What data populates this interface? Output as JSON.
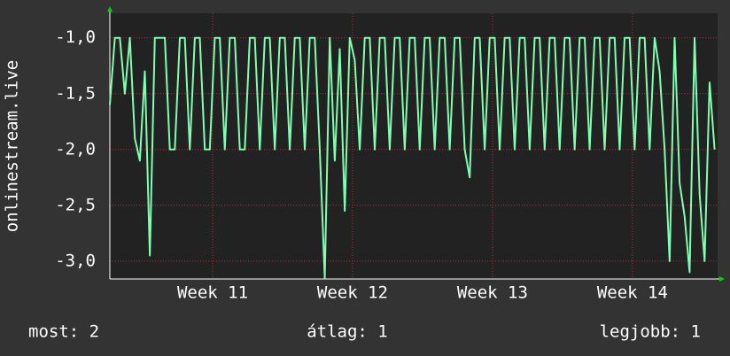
{
  "chart_data": {
    "type": "line",
    "ylabel": "onlinestream.live",
    "x": [
      0,
      0.25,
      0.5,
      0.75,
      1,
      1.25,
      1.5,
      1.75,
      2,
      2.25,
      2.5,
      2.75,
      3,
      3.25,
      3.5,
      3.75,
      4,
      4.25,
      4.5,
      4.75,
      5,
      5.25,
      5.5,
      5.75,
      6,
      6.25,
      6.5,
      6.75,
      7,
      7.25,
      7.5,
      7.75,
      8,
      8.25,
      8.5,
      8.75,
      9,
      9.25,
      9.5,
      9.75,
      10,
      10.25,
      10.5,
      10.75,
      11,
      11.25,
      11.5,
      11.75,
      12,
      12.25,
      12.5,
      12.75,
      13,
      13.25,
      13.5,
      13.75,
      14,
      14.25,
      14.5,
      14.75,
      15,
      15.25,
      15.5,
      15.75,
      16,
      16.25,
      16.5,
      16.75,
      17,
      17.25,
      17.5,
      17.75,
      18,
      18.25,
      18.5,
      18.75,
      19,
      19.25,
      19.5,
      19.75,
      20,
      20.25,
      20.5,
      20.75,
      21,
      21.25,
      21.5,
      21.75,
      22,
      22.25,
      22.5,
      22.75,
      23,
      23.25,
      23.5,
      23.75,
      24,
      24.25,
      24.5,
      24.75,
      25,
      25.25,
      25.5,
      25.75,
      26,
      26.25,
      26.5,
      26.75,
      27,
      27.25,
      27.5,
      27.75,
      28,
      28.25,
      28.5,
      28.75,
      29,
      29.25,
      29.5,
      29.75,
      30,
      30.25
    ],
    "series": [
      {
        "name": "onlinestream.live",
        "color": "#80ffb0",
        "values": [
          -1.6,
          -1,
          -1,
          -1.5,
          -1,
          -1.9,
          -2.1,
          -1.3,
          -2.95,
          -1,
          -1,
          -1,
          -2,
          -2,
          -1,
          -1,
          -2,
          -1,
          -1,
          -2,
          -2,
          -1,
          -1,
          -2,
          -1,
          -1,
          -2,
          -2,
          -1,
          -1,
          -2,
          -1,
          -1,
          -2,
          -1,
          -1,
          -2,
          -1,
          -1,
          -2,
          -1,
          -1,
          -2,
          -3.15,
          -1,
          -2.1,
          -1.1,
          -2.55,
          -1,
          -1.2,
          -2,
          -1,
          -1,
          -2,
          -1,
          -1,
          -2,
          -1,
          -1,
          -2,
          -1,
          -1,
          -2,
          -1,
          -1,
          -2,
          -1,
          -1,
          -2,
          -1,
          -1,
          -2,
          -2.25,
          -1,
          -1,
          -2,
          -1,
          -1,
          -2,
          -1,
          -1,
          -2,
          -1,
          -1,
          -2,
          -1,
          -1,
          -2,
          -1,
          -1,
          -2,
          -1,
          -1,
          -2,
          -1,
          -1,
          -2,
          -1,
          -1,
          -2,
          -1,
          -1,
          -2,
          -1,
          -1,
          -2,
          -1,
          -1,
          -2,
          -1,
          -1.3,
          -2,
          -3,
          -1,
          -2.3,
          -2.6,
          -3.1,
          -1,
          -2.4,
          -3,
          -1.4,
          -2
        ]
      }
    ],
    "xlim": [
      0,
      30.4
    ],
    "xticks": [
      {
        "value": 5.14,
        "label": "Week 11"
      },
      {
        "value": 12.14,
        "label": "Week 12"
      },
      {
        "value": 19.14,
        "label": "Week 13"
      },
      {
        "value": 26.14,
        "label": "Week 14"
      }
    ],
    "ylim": [
      -3.16,
      -0.78
    ],
    "yticks": [
      {
        "value": -1,
        "label": "-1,0"
      },
      {
        "value": -1.5,
        "label": "-1,5"
      },
      {
        "value": -2,
        "label": "-2,0"
      },
      {
        "value": -2.5,
        "label": "-2,5"
      },
      {
        "value": -3,
        "label": "-3,0"
      }
    ],
    "grid": true
  },
  "footer": [
    "most: 2",
    "átlag: 1",
    "legjobb: 1"
  ]
}
